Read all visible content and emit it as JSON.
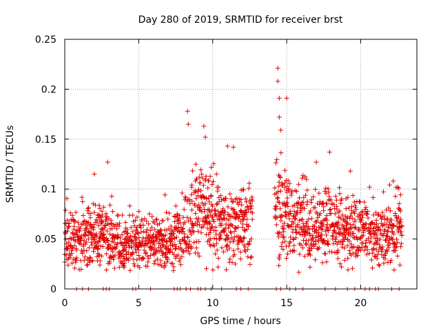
{
  "chart_data": {
    "type": "scatter",
    "title": "Day 280 of 2019, SRMTID for receiver brst",
    "xlabel": "GPS time / hours",
    "ylabel": "SRMTID / TECUs",
    "xlim": [
      0,
      23.8
    ],
    "ylim": [
      0,
      0.25
    ],
    "x_ticks": [
      0,
      5,
      10,
      15,
      20
    ],
    "x_tick_labels": [
      "0",
      "5",
      "10",
      "15",
      "20"
    ],
    "y_ticks": [
      0,
      0.05,
      0.1,
      0.15,
      0.2,
      0.25
    ],
    "y_tick_labels": [
      "0",
      "0.05",
      "0.1",
      "0.15",
      "0.2",
      "0.25"
    ],
    "grid": true,
    "marker": "+",
    "marker_color": "#e00000",
    "data_gap_hours": [
      12.7,
      14.2
    ],
    "trend": [
      {
        "x": 0.0,
        "y": 0.05
      },
      {
        "x": 1.0,
        "y": 0.048
      },
      {
        "x": 2.0,
        "y": 0.055
      },
      {
        "x": 3.0,
        "y": 0.052
      },
      {
        "x": 4.0,
        "y": 0.04
      },
      {
        "x": 5.0,
        "y": 0.048
      },
      {
        "x": 6.0,
        "y": 0.05
      },
      {
        "x": 7.0,
        "y": 0.045
      },
      {
        "x": 8.0,
        "y": 0.06
      },
      {
        "x": 9.0,
        "y": 0.085
      },
      {
        "x": 10.0,
        "y": 0.07
      },
      {
        "x": 11.0,
        "y": 0.06
      },
      {
        "x": 12.0,
        "y": 0.065
      },
      {
        "x": 12.7,
        "y": 0.07
      },
      {
        "x": 14.2,
        "y": 0.08
      },
      {
        "x": 15.0,
        "y": 0.075
      },
      {
        "x": 16.0,
        "y": 0.065
      },
      {
        "x": 17.0,
        "y": 0.06
      },
      {
        "x": 18.0,
        "y": 0.065
      },
      {
        "x": 19.0,
        "y": 0.06
      },
      {
        "x": 20.0,
        "y": 0.055
      },
      {
        "x": 21.0,
        "y": 0.05
      },
      {
        "x": 22.0,
        "y": 0.055
      },
      {
        "x": 22.8,
        "y": 0.06
      }
    ],
    "peaks": [
      {
        "x": 2.9,
        "y": 0.127
      },
      {
        "x": 2.0,
        "y": 0.115
      },
      {
        "x": 8.3,
        "y": 0.178
      },
      {
        "x": 8.35,
        "y": 0.165
      },
      {
        "x": 9.4,
        "y": 0.163
      },
      {
        "x": 9.5,
        "y": 0.152
      },
      {
        "x": 11.0,
        "y": 0.143
      },
      {
        "x": 11.4,
        "y": 0.142
      },
      {
        "x": 14.4,
        "y": 0.221
      },
      {
        "x": 14.4,
        "y": 0.208
      },
      {
        "x": 14.5,
        "y": 0.191
      },
      {
        "x": 15.0,
        "y": 0.191
      },
      {
        "x": 14.5,
        "y": 0.172
      },
      {
        "x": 14.6,
        "y": 0.159
      },
      {
        "x": 17.0,
        "y": 0.127
      },
      {
        "x": 17.9,
        "y": 0.137
      },
      {
        "x": 19.3,
        "y": 0.118
      },
      {
        "x": 20.6,
        "y": 0.102
      },
      {
        "x": 22.2,
        "y": 0.108
      }
    ],
    "zero_markers": [
      0.8,
      1.2,
      1.6,
      2.6,
      2.8,
      3.0,
      4.6,
      4.8,
      5.8,
      7.4,
      7.6,
      7.8,
      8.2,
      8.5,
      9.0,
      9.2,
      9.5,
      9.9,
      10.6,
      11.6,
      11.9,
      12.4,
      14.3,
      14.6,
      15.2,
      15.6,
      16.1,
      17.6,
      18.3,
      19.1,
      19.6,
      20.3,
      20.6,
      21.0,
      21.2,
      22.1,
      22.6
    ]
  }
}
